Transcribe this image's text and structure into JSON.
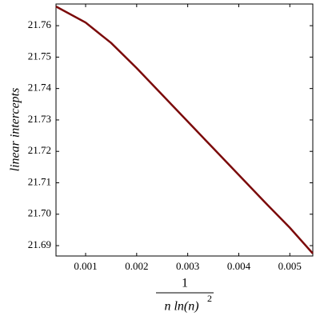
{
  "chart_data": {
    "type": "line",
    "ylabel": "linear intercepts",
    "xlabel": {
      "numerator": "1",
      "denominator": "n ln(n)",
      "exponent": "2"
    },
    "x": [
      0.00042,
      0.001,
      0.0015,
      0.002,
      0.0025,
      0.003,
      0.0035,
      0.004,
      0.0045,
      0.005,
      0.00545
    ],
    "series": [
      {
        "color": "#7b0a0a",
        "values": [
          21.7661,
          21.761,
          21.7545,
          21.7465,
          21.738,
          21.7295,
          21.721,
          21.7125,
          21.704,
          21.6957,
          21.6875
        ]
      }
    ],
    "xlim": [
      0.00042,
      0.00545
    ],
    "ylim": [
      21.6867,
      21.7669
    ],
    "xticks": [
      0.001,
      0.002,
      0.003,
      0.004,
      0.005
    ],
    "yticks": [
      21.69,
      {
        "value": 21.7,
        "label": "21.70"
      },
      21.71,
      21.72,
      21.73,
      21.74,
      21.75,
      21.76
    ]
  }
}
